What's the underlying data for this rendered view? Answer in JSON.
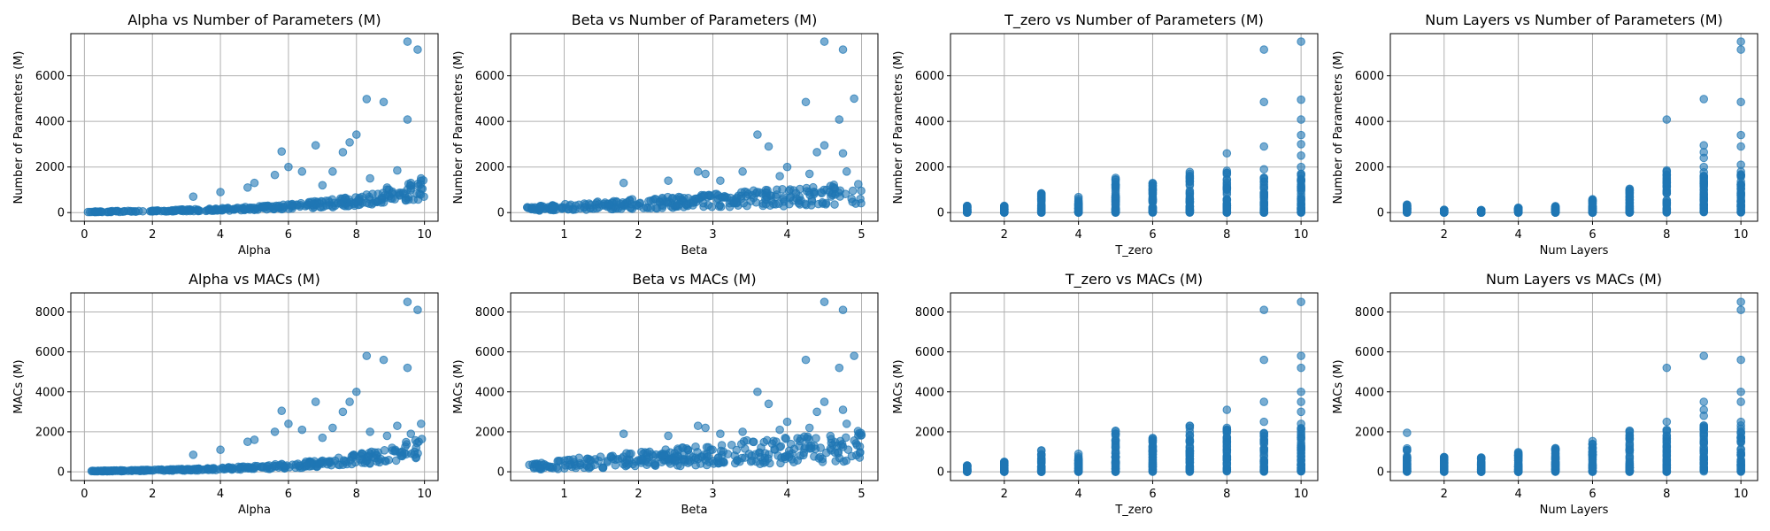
{
  "colors": {
    "marker": "#1f77b4",
    "marker_edge": "#1f77b4",
    "grid": "#b0b0b0"
  },
  "chart_data": [
    {
      "type": "scatter",
      "title": "Alpha vs Number of Parameters (M)",
      "xlabel": "Alpha",
      "ylabel": "Number of Parameters (M)",
      "xlim": [
        -0.4,
        10.4
      ],
      "ylim": [
        -380,
        7850
      ],
      "xticks": [
        0,
        2,
        4,
        6,
        8,
        10
      ],
      "yticks": [
        0,
        2000,
        4000,
        6000
      ],
      "grid": true,
      "x_kind": "cont",
      "bulk": {
        "x": [
          0.1,
          10
        ],
        "center": "exp:30:0.34",
        "spread": "exp:15:0.34",
        "n": 320,
        "seed": 11
      },
      "highlights": [
        [
          9.5,
          7500
        ],
        [
          9.8,
          7150
        ],
        [
          8.3,
          4980
        ],
        [
          8.8,
          4850
        ],
        [
          9.5,
          4080
        ],
        [
          8.0,
          3420
        ],
        [
          7.8,
          3080
        ],
        [
          6.8,
          2950
        ],
        [
          7.6,
          2650
        ],
        [
          5.8,
          2680
        ],
        [
          6.0,
          2000
        ],
        [
          6.4,
          1800
        ],
        [
          5.6,
          1650
        ],
        [
          7.3,
          1800
        ],
        [
          8.4,
          1500
        ],
        [
          9.2,
          1850
        ],
        [
          9.9,
          1500
        ],
        [
          4.8,
          1100
        ],
        [
          4.0,
          900
        ],
        [
          3.2,
          700
        ],
        [
          5.0,
          1300
        ],
        [
          8.9,
          1100
        ],
        [
          7.0,
          1200
        ],
        [
          9.6,
          1300
        ]
      ]
    },
    {
      "type": "scatter",
      "title": "Beta vs Number of Parameters (M)",
      "xlabel": "Beta",
      "ylabel": "Number of Parameters (M)",
      "xlim": [
        0.28,
        5.22
      ],
      "ylim": [
        -380,
        7850
      ],
      "xticks": [
        1,
        2,
        3,
        4,
        5
      ],
      "yticks": [
        0,
        2000,
        4000,
        6000
      ],
      "grid": true,
      "x_kind": "cont",
      "bulk": {
        "x": [
          0.5,
          5
        ],
        "center": "lin:80:120",
        "spread": "lin:40:90",
        "n": 320,
        "seed": 23
      },
      "highlights": [
        [
          4.5,
          7500
        ],
        [
          4.75,
          7150
        ],
        [
          4.9,
          5000
        ],
        [
          4.25,
          4850
        ],
        [
          4.7,
          4080
        ],
        [
          3.6,
          3420
        ],
        [
          3.75,
          2900
        ],
        [
          4.5,
          2950
        ],
        [
          4.4,
          2650
        ],
        [
          4.75,
          2600
        ],
        [
          2.8,
          1800
        ],
        [
          2.9,
          1700
        ],
        [
          3.4,
          1800
        ],
        [
          1.8,
          1300
        ],
        [
          4.0,
          2000
        ],
        [
          4.3,
          1700
        ],
        [
          3.1,
          1400
        ],
        [
          2.4,
          1400
        ],
        [
          4.8,
          1800
        ],
        [
          3.9,
          1600
        ]
      ]
    },
    {
      "type": "scatter",
      "title": "T_zero vs Number of Parameters (M)",
      "xlabel": "T_zero",
      "ylabel": "Number of Parameters (M)",
      "xlim": [
        0.55,
        10.45
      ],
      "ylim": [
        -380,
        7850
      ],
      "xticks": [
        2,
        4,
        6,
        8,
        10
      ],
      "yticks": [
        0,
        2000,
        4000,
        6000
      ],
      "grid": true,
      "x_kind": "disc",
      "columns": [
        [
          1,
          0,
          300
        ],
        [
          2,
          0,
          350
        ],
        [
          3,
          0,
          850
        ],
        [
          4,
          0,
          700
        ],
        [
          5,
          0,
          1650
        ],
        [
          6,
          0,
          1300
        ],
        [
          7,
          0,
          1850
        ],
        [
          8,
          0,
          1850
        ],
        [
          9,
          0,
          1600
        ],
        [
          10,
          0,
          1800
        ]
      ],
      "highlights": [
        [
          9,
          7150
        ],
        [
          10,
          7500
        ],
        [
          9,
          4850
        ],
        [
          10,
          4950
        ],
        [
          10,
          4080
        ],
        [
          10,
          3400
        ],
        [
          10,
          3000
        ],
        [
          9,
          2900
        ],
        [
          8,
          2600
        ],
        [
          10,
          2500
        ],
        [
          9,
          1900
        ],
        [
          10,
          2000
        ],
        [
          8,
          1750
        ],
        [
          7,
          1700
        ]
      ]
    },
    {
      "type": "scatter",
      "title": "Num Layers vs Number of Parameters (M)",
      "xlabel": "Num Layers",
      "ylabel": "Number of Parameters (M)",
      "xlim": [
        0.55,
        10.45
      ],
      "ylim": [
        -380,
        7850
      ],
      "xticks": [
        2,
        4,
        6,
        8,
        10
      ],
      "yticks": [
        0,
        2000,
        4000,
        6000
      ],
      "grid": true,
      "x_kind": "disc",
      "columns": [
        [
          1,
          0,
          350
        ],
        [
          2,
          0,
          120
        ],
        [
          3,
          0,
          120
        ],
        [
          4,
          0,
          220
        ],
        [
          5,
          0,
          300
        ],
        [
          6,
          0,
          600
        ],
        [
          7,
          0,
          1050
        ],
        [
          8,
          0,
          1850
        ],
        [
          9,
          0,
          1850
        ],
        [
          10,
          0,
          1850
        ]
      ],
      "highlights": [
        [
          10,
          7500
        ],
        [
          10,
          7150
        ],
        [
          9,
          4980
        ],
        [
          10,
          4850
        ],
        [
          8,
          4080
        ],
        [
          10,
          3400
        ],
        [
          10,
          2900
        ],
        [
          9,
          2950
        ],
        [
          9,
          2650
        ],
        [
          9,
          2400
        ],
        [
          10,
          2100
        ],
        [
          8,
          1800
        ],
        [
          9,
          2000
        ]
      ]
    },
    {
      "type": "scatter",
      "title": "Alpha vs MACs (M)",
      "xlabel": "Alpha",
      "ylabel": "MACs (M)",
      "xlim": [
        -0.4,
        10.4
      ],
      "ylim": [
        -440,
        8950
      ],
      "xticks": [
        0,
        2,
        4,
        6,
        8,
        10
      ],
      "yticks": [
        0,
        2000,
        4000,
        6000,
        8000
      ],
      "grid": true,
      "x_kind": "cont",
      "bulk": {
        "x": [
          0.1,
          10
        ],
        "center": "exp:30:0.36",
        "spread": "exp:15:0.36",
        "n": 320,
        "seed": 37
      },
      "highlights": [
        [
          9.5,
          8500
        ],
        [
          9.8,
          8100
        ],
        [
          8.3,
          5800
        ],
        [
          8.8,
          5600
        ],
        [
          9.5,
          5200
        ],
        [
          8.0,
          4000
        ],
        [
          7.8,
          3500
        ],
        [
          6.8,
          3500
        ],
        [
          7.6,
          3000
        ],
        [
          5.8,
          3050
        ],
        [
          6.0,
          2400
        ],
        [
          6.4,
          2100
        ],
        [
          5.6,
          2000
        ],
        [
          7.3,
          2200
        ],
        [
          8.4,
          2000
        ],
        [
          9.2,
          2300
        ],
        [
          9.9,
          2400
        ],
        [
          4.8,
          1500
        ],
        [
          4.0,
          1100
        ],
        [
          3.2,
          850
        ],
        [
          5.0,
          1600
        ],
        [
          8.9,
          1800
        ],
        [
          7.0,
          1700
        ],
        [
          9.6,
          1900
        ]
      ]
    },
    {
      "type": "scatter",
      "title": "Beta vs MACs (M)",
      "xlabel": "Beta",
      "ylabel": "MACs (M)",
      "xlim": [
        0.28,
        5.22
      ],
      "ylim": [
        -440,
        8950
      ],
      "xticks": [
        1,
        2,
        3,
        4,
        5
      ],
      "yticks": [
        0,
        2000,
        4000,
        6000,
        8000
      ],
      "grid": true,
      "x_kind": "cont",
      "bulk": {
        "x": [
          0.5,
          5
        ],
        "center": "lin:100:200",
        "spread": "lin:80:150",
        "n": 320,
        "seed": 51
      },
      "highlights": [
        [
          4.5,
          8500
        ],
        [
          4.75,
          8100
        ],
        [
          4.9,
          5800
        ],
        [
          4.25,
          5600
        ],
        [
          4.7,
          5200
        ],
        [
          3.6,
          4000
        ],
        [
          3.75,
          3400
        ],
        [
          4.5,
          3500
        ],
        [
          4.4,
          3000
        ],
        [
          4.75,
          3100
        ],
        [
          2.8,
          2300
        ],
        [
          2.9,
          2200
        ],
        [
          3.4,
          2000
        ],
        [
          1.8,
          1900
        ],
        [
          4.0,
          2500
        ],
        [
          4.3,
          2200
        ],
        [
          3.1,
          1900
        ],
        [
          2.4,
          1800
        ],
        [
          4.8,
          2400
        ],
        [
          3.9,
          2100
        ],
        [
          1.2,
          700
        ]
      ]
    },
    {
      "type": "scatter",
      "title": "T_zero vs MACs (M)",
      "xlabel": "T_zero",
      "ylabel": "MACs (M)",
      "xlim": [
        0.55,
        10.45
      ],
      "ylim": [
        -440,
        8950
      ],
      "xticks": [
        2,
        4,
        6,
        8,
        10
      ],
      "yticks": [
        0,
        2000,
        4000,
        6000,
        8000
      ],
      "grid": true,
      "x_kind": "disc",
      "columns": [
        [
          1,
          0,
          350
        ],
        [
          2,
          0,
          550
        ],
        [
          3,
          0,
          1150
        ],
        [
          4,
          0,
          900
        ],
        [
          5,
          0,
          2050
        ],
        [
          6,
          0,
          1700
        ],
        [
          7,
          0,
          2350
        ],
        [
          8,
          0,
          2150
        ],
        [
          9,
          0,
          2000
        ],
        [
          10,
          0,
          2300
        ]
      ],
      "highlights": [
        [
          9,
          8100
        ],
        [
          10,
          8500
        ],
        [
          9,
          5600
        ],
        [
          10,
          5800
        ],
        [
          10,
          5200
        ],
        [
          10,
          4000
        ],
        [
          10,
          3500
        ],
        [
          9,
          3500
        ],
        [
          8,
          3100
        ],
        [
          10,
          3000
        ],
        [
          9,
          2500
        ],
        [
          10,
          2400
        ],
        [
          8,
          2200
        ],
        [
          7,
          2300
        ]
      ]
    },
    {
      "type": "scatter",
      "title": "Num Layers vs MACs (M)",
      "xlabel": "Num Layers",
      "ylabel": "MACs (M)",
      "xlim": [
        0.55,
        10.45
      ],
      "ylim": [
        -440,
        8950
      ],
      "xticks": [
        2,
        4,
        6,
        8,
        10
      ],
      "yticks": [
        0,
        2000,
        4000,
        6000,
        8000
      ],
      "grid": true,
      "x_kind": "disc",
      "columns": [
        [
          1,
          0,
          1200
        ],
        [
          2,
          0,
          750
        ],
        [
          3,
          0,
          750
        ],
        [
          4,
          0,
          1000
        ],
        [
          5,
          0,
          1200
        ],
        [
          6,
          0,
          1650
        ],
        [
          7,
          0,
          2050
        ],
        [
          8,
          0,
          2100
        ],
        [
          9,
          0,
          2350
        ],
        [
          10,
          0,
          2350
        ]
      ],
      "highlights": [
        [
          10,
          8500
        ],
        [
          10,
          8100
        ],
        [
          9,
          5800
        ],
        [
          10,
          5600
        ],
        [
          8,
          5200
        ],
        [
          10,
          4000
        ],
        [
          10,
          3500
        ],
        [
          9,
          3500
        ],
        [
          9,
          3100
        ],
        [
          9,
          2800
        ],
        [
          10,
          2500
        ],
        [
          8,
          2500
        ],
        [
          1,
          1950
        ],
        [
          7,
          2050
        ]
      ]
    }
  ]
}
